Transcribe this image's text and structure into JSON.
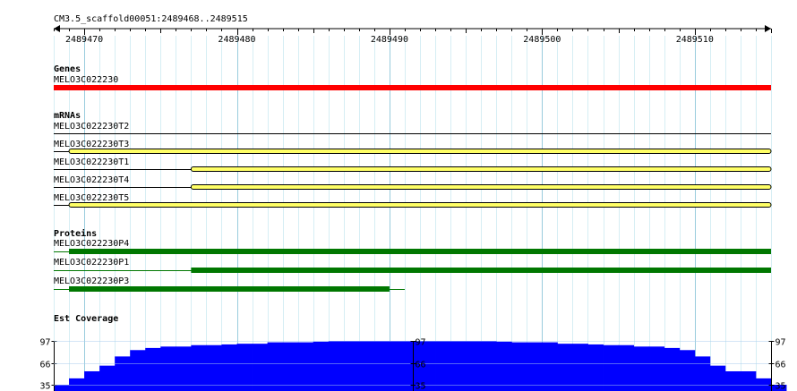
{
  "locus": "CM3.5_scaffold00051:2489468..2489515",
  "ruler": {
    "start": 2489468,
    "end": 2489515,
    "tick_labels": [
      "2489470",
      "2489480",
      "2489490",
      "2489500",
      "2489510"
    ],
    "tick_values": [
      2489470,
      2489480,
      2489490,
      2489500,
      2489510
    ]
  },
  "tracks": {
    "genes": {
      "title": "Genes",
      "color": "#ff0000",
      "features": [
        {
          "name": "MELO3C022230",
          "start": 2489468,
          "end": 2489515
        }
      ]
    },
    "mrnas": {
      "title": "mRNAs",
      "utr_color": "#ffff66",
      "features": [
        {
          "name": "MELO3C022230T2",
          "line_start": 2489468,
          "line_end": 2489515,
          "box_start": null,
          "box_end": null
        },
        {
          "name": "MELO3C022230T3",
          "line_start": 2489468,
          "line_end": 2489515,
          "box_start": 2489469,
          "box_end": 2489515
        },
        {
          "name": "MELO3C022230T1",
          "line_start": 2489468,
          "line_end": 2489515,
          "box_start": 2489477,
          "box_end": 2489515
        },
        {
          "name": "MELO3C022230T4",
          "line_start": 2489468,
          "line_end": 2489515,
          "box_start": 2489477,
          "box_end": 2489515
        },
        {
          "name": "MELO3C022230T5",
          "line_start": 2489468,
          "line_end": 2489515,
          "box_start": 2489469,
          "box_end": 2489515
        }
      ]
    },
    "proteins": {
      "title": "Proteins",
      "color": "#007700",
      "features": [
        {
          "name": "MELO3C022230P4",
          "line_start": 2489468,
          "line_end": 2489515,
          "box_start": 2489469,
          "box_end": 2489515
        },
        {
          "name": "MELO3C022230P1",
          "line_start": 2489468,
          "line_end": 2489515,
          "box_start": 2489477,
          "box_end": 2489515
        },
        {
          "name": "MELO3C022230P3",
          "line_start": 2489468,
          "line_end": 2489491,
          "box_start": 2489469,
          "box_end": 2489490
        }
      ]
    },
    "est": {
      "title": "Est Coverage",
      "color": "#0000ff",
      "scale_labels": [
        "97",
        "66",
        "35"
      ],
      "scale_values": [
        97,
        66,
        35
      ],
      "coverage": [
        35,
        44,
        54,
        62,
        75,
        84,
        87,
        89,
        89,
        91,
        91,
        92,
        93,
        93,
        95,
        95,
        95,
        96,
        97,
        97,
        97,
        97,
        97,
        97,
        97,
        97,
        97,
        97,
        97,
        96,
        95,
        95,
        95,
        93,
        93,
        92,
        91,
        91,
        89,
        89,
        87,
        84,
        75,
        62,
        54,
        54,
        44,
        35
      ]
    }
  }
}
